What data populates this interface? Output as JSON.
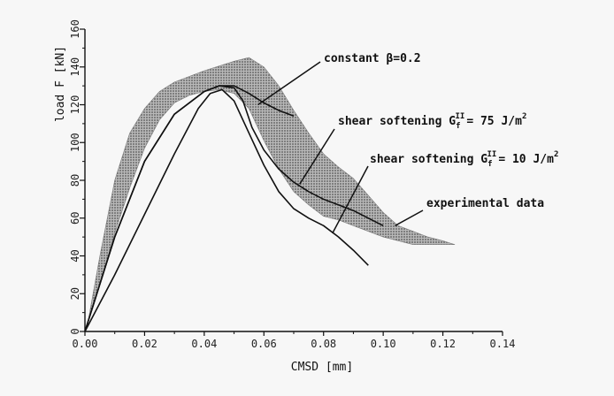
{
  "chart_data": {
    "type": "line",
    "xlabel": "CMSD [mm]",
    "ylabel": "load F [kN]",
    "xlim": [
      0.0,
      0.14
    ],
    "ylim": [
      0,
      160
    ],
    "x_ticks": [
      "0.00",
      "0.02",
      "0.04",
      "0.06",
      "0.08",
      "0.10",
      "0.12",
      "0.14"
    ],
    "y_ticks": [
      "0",
      "20",
      "40",
      "60",
      "80",
      "100",
      "120",
      "140",
      "160"
    ],
    "grid": false,
    "band": {
      "name": "experimental data",
      "color": "#9a9a9a",
      "upper": [
        {
          "x": 0.001,
          "y": 5
        },
        {
          "x": 0.005,
          "y": 40
        },
        {
          "x": 0.01,
          "y": 80
        },
        {
          "x": 0.015,
          "y": 105
        },
        {
          "x": 0.02,
          "y": 118
        },
        {
          "x": 0.025,
          "y": 127
        },
        {
          "x": 0.03,
          "y": 132
        },
        {
          "x": 0.04,
          "y": 138
        },
        {
          "x": 0.05,
          "y": 143
        },
        {
          "x": 0.055,
          "y": 145
        },
        {
          "x": 0.06,
          "y": 140
        },
        {
          "x": 0.065,
          "y": 130
        },
        {
          "x": 0.07,
          "y": 117
        },
        {
          "x": 0.075,
          "y": 105
        },
        {
          "x": 0.08,
          "y": 94
        },
        {
          "x": 0.085,
          "y": 87
        },
        {
          "x": 0.09,
          "y": 81
        },
        {
          "x": 0.095,
          "y": 72
        },
        {
          "x": 0.1,
          "y": 63
        },
        {
          "x": 0.105,
          "y": 56
        },
        {
          "x": 0.11,
          "y": 53
        },
        {
          "x": 0.115,
          "y": 50
        },
        {
          "x": 0.12,
          "y": 48
        },
        {
          "x": 0.124,
          "y": 46
        }
      ],
      "lower": [
        {
          "x": 0.124,
          "y": 46
        },
        {
          "x": 0.118,
          "y": 46
        },
        {
          "x": 0.11,
          "y": 46
        },
        {
          "x": 0.1,
          "y": 50
        },
        {
          "x": 0.095,
          "y": 53
        },
        {
          "x": 0.09,
          "y": 56
        },
        {
          "x": 0.085,
          "y": 59
        },
        {
          "x": 0.08,
          "y": 61
        },
        {
          "x": 0.075,
          "y": 67
        },
        {
          "x": 0.07,
          "y": 74
        },
        {
          "x": 0.065,
          "y": 86
        },
        {
          "x": 0.06,
          "y": 101
        },
        {
          "x": 0.055,
          "y": 118
        },
        {
          "x": 0.05,
          "y": 126
        },
        {
          "x": 0.045,
          "y": 128
        },
        {
          "x": 0.04,
          "y": 127
        },
        {
          "x": 0.035,
          "y": 125
        },
        {
          "x": 0.03,
          "y": 121
        },
        {
          "x": 0.025,
          "y": 112
        },
        {
          "x": 0.02,
          "y": 97
        },
        {
          "x": 0.015,
          "y": 76
        },
        {
          "x": 0.01,
          "y": 52
        },
        {
          "x": 0.005,
          "y": 25
        },
        {
          "x": 0.001,
          "y": 5
        }
      ]
    },
    "series": [
      {
        "name": "constant β=0.2",
        "color": "#111111",
        "points": [
          {
            "x": 0.0,
            "y": 0
          },
          {
            "x": 0.01,
            "y": 50
          },
          {
            "x": 0.02,
            "y": 90
          },
          {
            "x": 0.03,
            "y": 115
          },
          {
            "x": 0.04,
            "y": 127
          },
          {
            "x": 0.045,
            "y": 130
          },
          {
            "x": 0.05,
            "y": 130
          },
          {
            "x": 0.055,
            "y": 126
          },
          {
            "x": 0.06,
            "y": 121
          },
          {
            "x": 0.065,
            "y": 117
          },
          {
            "x": 0.07,
            "y": 114
          }
        ]
      },
      {
        "name": "shear softening G_f^II = 75 J/m²",
        "color": "#111111",
        "points": [
          {
            "x": 0.0,
            "y": 0
          },
          {
            "x": 0.01,
            "y": 50
          },
          {
            "x": 0.02,
            "y": 90
          },
          {
            "x": 0.03,
            "y": 115
          },
          {
            "x": 0.04,
            "y": 127
          },
          {
            "x": 0.045,
            "y": 130
          },
          {
            "x": 0.05,
            "y": 129
          },
          {
            "x": 0.053,
            "y": 122
          },
          {
            "x": 0.056,
            "y": 108
          },
          {
            "x": 0.06,
            "y": 96
          },
          {
            "x": 0.065,
            "y": 86
          },
          {
            "x": 0.07,
            "y": 79
          },
          {
            "x": 0.075,
            "y": 74
          },
          {
            "x": 0.08,
            "y": 70
          },
          {
            "x": 0.085,
            "y": 67
          },
          {
            "x": 0.09,
            "y": 64
          },
          {
            "x": 0.095,
            "y": 60
          },
          {
            "x": 0.1,
            "y": 56
          }
        ]
      },
      {
        "name": "shear softening G_f^II = 10 J/m²",
        "color": "#111111",
        "points": [
          {
            "x": 0.0,
            "y": 0
          },
          {
            "x": 0.01,
            "y": 30
          },
          {
            "x": 0.02,
            "y": 62
          },
          {
            "x": 0.03,
            "y": 94
          },
          {
            "x": 0.038,
            "y": 118
          },
          {
            "x": 0.042,
            "y": 126
          },
          {
            "x": 0.046,
            "y": 128
          },
          {
            "x": 0.05,
            "y": 122
          },
          {
            "x": 0.055,
            "y": 105
          },
          {
            "x": 0.06,
            "y": 88
          },
          {
            "x": 0.065,
            "y": 74
          },
          {
            "x": 0.07,
            "y": 65
          },
          {
            "x": 0.075,
            "y": 60
          },
          {
            "x": 0.08,
            "y": 56
          },
          {
            "x": 0.085,
            "y": 50
          },
          {
            "x": 0.09,
            "y": 43
          },
          {
            "x": 0.095,
            "y": 35
          }
        ]
      }
    ],
    "annotations": [
      {
        "text": "constant β=0.2",
        "target": {
          "x": 0.058,
          "y": 120
        }
      },
      {
        "text": "shear softening G",
        "sub": "f",
        "sup": "II",
        "value": "= 75 J/m",
        "unit_sup": "2",
        "target": {
          "x": 0.072,
          "y": 78
        }
      },
      {
        "text": "shear softening G",
        "sub": "f",
        "sup": "II",
        "value": "= 10 J/m",
        "unit_sup": "2",
        "target": {
          "x": 0.083,
          "y": 52
        }
      },
      {
        "text": "experimental data",
        "target": {
          "x": 0.104,
          "y": 56
        }
      }
    ]
  }
}
